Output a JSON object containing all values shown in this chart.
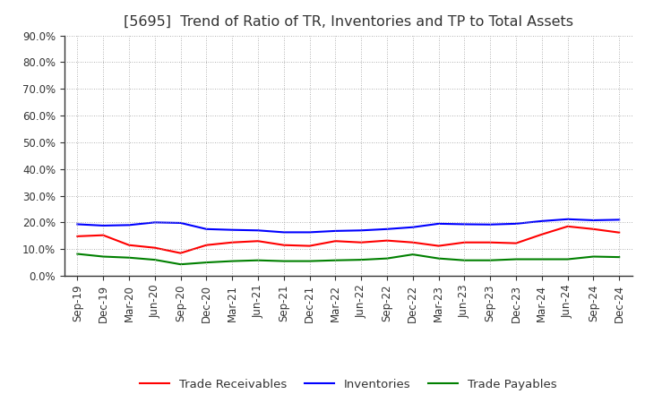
{
  "title": "[5695]  Trend of Ratio of TR, Inventories and TP to Total Assets",
  "x_labels": [
    "Sep-19",
    "Dec-19",
    "Mar-20",
    "Jun-20",
    "Sep-20",
    "Dec-20",
    "Mar-21",
    "Jun-21",
    "Sep-21",
    "Dec-21",
    "Mar-22",
    "Jun-22",
    "Sep-22",
    "Dec-22",
    "Mar-23",
    "Jun-23",
    "Sep-23",
    "Dec-23",
    "Mar-24",
    "Jun-24",
    "Sep-24",
    "Dec-24"
  ],
  "trade_receivables": [
    0.148,
    0.152,
    0.115,
    0.105,
    0.085,
    0.115,
    0.125,
    0.13,
    0.115,
    0.112,
    0.13,
    0.125,
    0.132,
    0.125,
    0.112,
    0.125,
    0.125,
    0.122,
    0.155,
    0.185,
    0.175,
    0.162
  ],
  "inventories": [
    0.193,
    0.188,
    0.19,
    0.2,
    0.198,
    0.175,
    0.172,
    0.17,
    0.163,
    0.163,
    0.168,
    0.17,
    0.175,
    0.182,
    0.195,
    0.193,
    0.192,
    0.195,
    0.205,
    0.212,
    0.208,
    0.21
  ],
  "trade_payables": [
    0.082,
    0.072,
    0.068,
    0.06,
    0.043,
    0.05,
    0.055,
    0.058,
    0.055,
    0.055,
    0.058,
    0.06,
    0.065,
    0.08,
    0.065,
    0.058,
    0.058,
    0.062,
    0.062,
    0.062,
    0.072,
    0.07
  ],
  "tr_color": "#ff0000",
  "inv_color": "#0000ff",
  "tp_color": "#008000",
  "ylim": [
    0.0,
    0.9
  ],
  "yticks": [
    0.0,
    0.1,
    0.2,
    0.3,
    0.4,
    0.5,
    0.6,
    0.7,
    0.8,
    0.9
  ],
  "legend_labels": [
    "Trade Receivables",
    "Inventories",
    "Trade Payables"
  ],
  "bg_color": "#ffffff",
  "grid_color": "#999999",
  "title_color": "#333333",
  "title_fontsize": 11.5,
  "tick_fontsize": 8.5,
  "legend_fontsize": 9.5
}
